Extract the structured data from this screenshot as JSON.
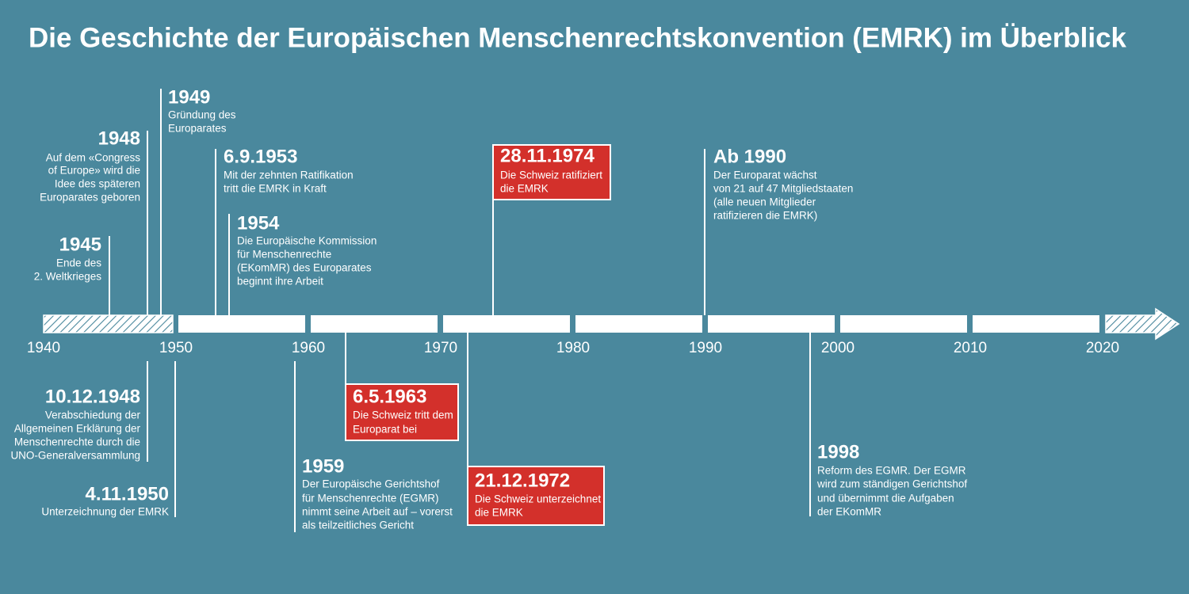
{
  "title": "Die Geschichte der Europäischen Menschenrechtskonvention (EMRK) im Überblick",
  "axis": {
    "labels": [
      "1940",
      "1950",
      "1960",
      "1970",
      "1980",
      "1990",
      "2000",
      "2010",
      "2020"
    ]
  },
  "events": [
    {
      "date": "1945",
      "lines": [
        "Ende des",
        "2. Weltkrieges"
      ]
    },
    {
      "date": "1948",
      "lines": [
        "Auf dem «Congress",
        "of Europe» wird die",
        "Idee des späteren",
        "Europarates geboren"
      ]
    },
    {
      "date": "1949",
      "lines": [
        "Gründung des",
        "Europarates"
      ]
    },
    {
      "date": "6.9.1953",
      "lines": [
        "Mit der zehnten Ratifikation",
        "tritt die EMRK in Kraft"
      ]
    },
    {
      "date": "1954",
      "lines": [
        "Die Europäische Kommission",
        "für Menschenrechte",
        "(EKomMR) des Europarates",
        "beginnt ihre Arbeit"
      ]
    },
    {
      "date": "28.11.1974",
      "lines": [
        "Die Schweiz ratifiziert",
        "die EMRK"
      ]
    },
    {
      "date": "Ab 1990",
      "lines": [
        "Der Europarat wächst",
        "von 21 auf 47 Mitgliedstaaten",
        "(alle neuen Mitglieder",
        "ratifizieren die EMRK)"
      ]
    },
    {
      "date": "10.12.1948",
      "lines": [
        "Verabschiedung der",
        "Allgemeinen Erklärung der",
        "Menschenrechte durch die",
        "UNO-Generalversammlung"
      ]
    },
    {
      "date": "4.11.1950",
      "lines": [
        "Unterzeichnung der EMRK"
      ]
    },
    {
      "date": "1959",
      "lines": [
        "Der Europäische Gerichtshof",
        "für Menschenrechte (EGMR)",
        "nimmt seine Arbeit auf – vorerst",
        "als teilzeitliches Gericht"
      ]
    },
    {
      "date": "6.5.1963",
      "lines": [
        "Die Schweiz tritt dem",
        "Europarat bei"
      ]
    },
    {
      "date": "21.12.1972",
      "lines": [
        "Die Schweiz unterzeichnet",
        "die EMRK"
      ]
    },
    {
      "date": "1998",
      "lines": [
        "Reform des EGMR. Der EGMR",
        "wird zum ständigen Gerichtshof",
        "und übernimmt die Aufgaben",
        "der EKomMR"
      ]
    }
  ]
}
